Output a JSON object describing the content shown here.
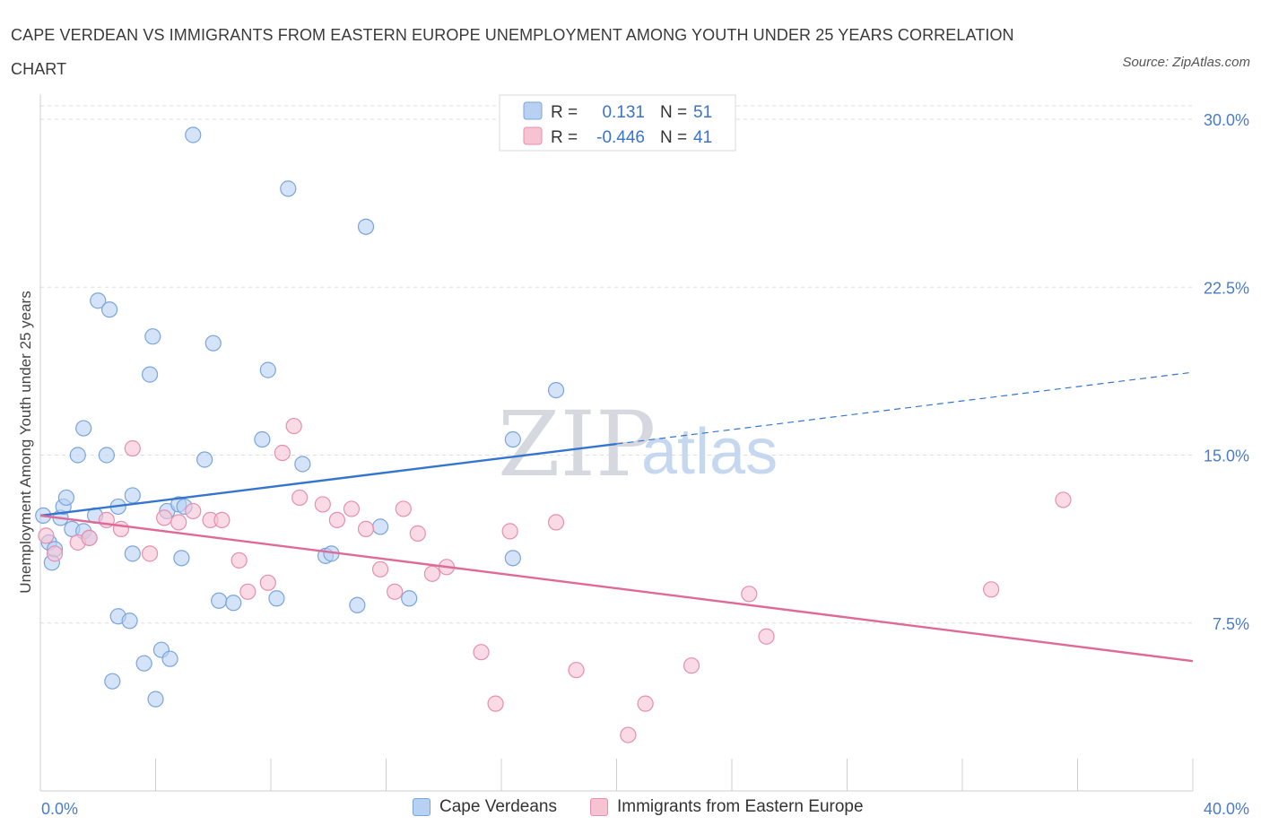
{
  "title": "CAPE VERDEAN VS IMMIGRANTS FROM EASTERN EUROPE UNEMPLOYMENT AMONG YOUTH UNDER 25 YEARS CORRELATION CHART",
  "source": "Source: ZipAtlas.com",
  "watermark": {
    "zip": "ZIP",
    "atlas": "atlas"
  },
  "colors": {
    "blue_fill": "#b8d1f3",
    "blue_stroke": "#7aa5dc",
    "blue_line": "#3575cf",
    "pink_fill": "#f7c3d3",
    "pink_stroke": "#e68fae",
    "pink_line": "#e06a97",
    "grid": "#dddddd",
    "tick_text": "#4a7cc9"
  },
  "legend_top": [
    {
      "r_label": "R =",
      "r_value": "0.131",
      "n_label": "N =",
      "n_value": "51"
    },
    {
      "r_label": "R =",
      "r_value": "-0.446",
      "n_label": "N =",
      "n_value": "41"
    }
  ],
  "chart_data": {
    "type": "scatter",
    "title": "CAPE VERDEAN VS IMMIGRANTS FROM EASTERN EUROPE UNEMPLOYMENT AMONG YOUTH UNDER 25 YEARS CORRELATION CHART",
    "xlabel": "",
    "ylabel": "Unemployment Among Youth under 25 years",
    "xlim": [
      0,
      40
    ],
    "ylim": [
      0,
      30
    ],
    "x_tick_labels": [
      "0.0%",
      "40.0%"
    ],
    "y_ticks": [
      7.5,
      15.0,
      22.5,
      30.0
    ],
    "y_tick_labels": [
      "7.5%",
      "15.0%",
      "22.5%",
      "30.0%"
    ],
    "grid": true,
    "legend_position": "bottom",
    "series": [
      {
        "name": "Cape Verdeans",
        "r": 0.131,
        "n": 51,
        "trend": {
          "x0": 0,
          "y0": 12.3,
          "x1": 20,
          "y1": 15.5,
          "dashed_to_x": 40,
          "dashed_to_y": 18.7
        },
        "points": [
          [
            0.1,
            12.3
          ],
          [
            0.3,
            11.1
          ],
          [
            0.4,
            10.2
          ],
          [
            0.5,
            10.8
          ],
          [
            0.7,
            12.2
          ],
          [
            0.8,
            12.7
          ],
          [
            0.9,
            13.1
          ],
          [
            1.1,
            11.7
          ],
          [
            1.3,
            15.0
          ],
          [
            1.5,
            11.6
          ],
          [
            1.5,
            16.2
          ],
          [
            1.7,
            11.3
          ],
          [
            1.9,
            12.3
          ],
          [
            2.0,
            21.9
          ],
          [
            2.3,
            15.0
          ],
          [
            2.4,
            21.5
          ],
          [
            2.5,
            4.9
          ],
          [
            2.7,
            12.7
          ],
          [
            2.7,
            7.8
          ],
          [
            3.1,
            7.6
          ],
          [
            3.2,
            13.2
          ],
          [
            3.2,
            10.6
          ],
          [
            3.6,
            5.7
          ],
          [
            3.8,
            18.6
          ],
          [
            3.9,
            20.3
          ],
          [
            4.0,
            4.1
          ],
          [
            4.2,
            6.3
          ],
          [
            4.4,
            12.5
          ],
          [
            4.5,
            5.9
          ],
          [
            4.8,
            12.8
          ],
          [
            4.9,
            10.4
          ],
          [
            5.0,
            12.7
          ],
          [
            5.3,
            29.3
          ],
          [
            5.7,
            14.8
          ],
          [
            6.0,
            20.0
          ],
          [
            6.2,
            8.5
          ],
          [
            6.7,
            8.4
          ],
          [
            7.7,
            15.7
          ],
          [
            7.9,
            18.8
          ],
          [
            8.2,
            8.6
          ],
          [
            8.6,
            26.9
          ],
          [
            9.1,
            14.6
          ],
          [
            9.9,
            10.5
          ],
          [
            10.1,
            10.6
          ],
          [
            11.0,
            8.3
          ],
          [
            11.3,
            25.2
          ],
          [
            11.8,
            11.8
          ],
          [
            12.8,
            8.6
          ],
          [
            16.4,
            10.4
          ],
          [
            16.4,
            15.7
          ],
          [
            17.9,
            17.9
          ]
        ]
      },
      {
        "name": "Immigrants from Eastern Europe",
        "r": -0.446,
        "n": 41,
        "trend": {
          "x0": 0,
          "y0": 12.3,
          "x1": 40,
          "y1": 5.8
        },
        "points": [
          [
            0.2,
            11.4
          ],
          [
            0.5,
            10.6
          ],
          [
            1.3,
            11.1
          ],
          [
            1.7,
            11.3
          ],
          [
            2.3,
            12.1
          ],
          [
            2.8,
            11.7
          ],
          [
            3.2,
            15.3
          ],
          [
            3.8,
            10.6
          ],
          [
            4.3,
            12.2
          ],
          [
            4.8,
            12.0
          ],
          [
            5.3,
            12.5
          ],
          [
            5.9,
            12.1
          ],
          [
            6.3,
            12.1
          ],
          [
            6.9,
            10.3
          ],
          [
            7.2,
            8.9
          ],
          [
            7.9,
            9.3
          ],
          [
            8.4,
            15.1
          ],
          [
            8.8,
            16.3
          ],
          [
            9.0,
            13.1
          ],
          [
            9.8,
            12.8
          ],
          [
            10.3,
            12.1
          ],
          [
            10.8,
            12.6
          ],
          [
            11.3,
            11.7
          ],
          [
            11.8,
            9.9
          ],
          [
            12.3,
            8.9
          ],
          [
            12.6,
            12.6
          ],
          [
            13.1,
            11.5
          ],
          [
            13.6,
            9.7
          ],
          [
            14.1,
            10.0
          ],
          [
            15.3,
            6.2
          ],
          [
            15.8,
            3.9
          ],
          [
            16.3,
            11.6
          ],
          [
            17.9,
            12.0
          ],
          [
            18.6,
            5.4
          ],
          [
            20.4,
            2.5
          ],
          [
            21.0,
            3.9
          ],
          [
            22.6,
            5.6
          ],
          [
            24.6,
            8.8
          ],
          [
            25.2,
            6.9
          ],
          [
            33.0,
            9.0
          ],
          [
            35.5,
            13.0
          ]
        ]
      }
    ]
  }
}
